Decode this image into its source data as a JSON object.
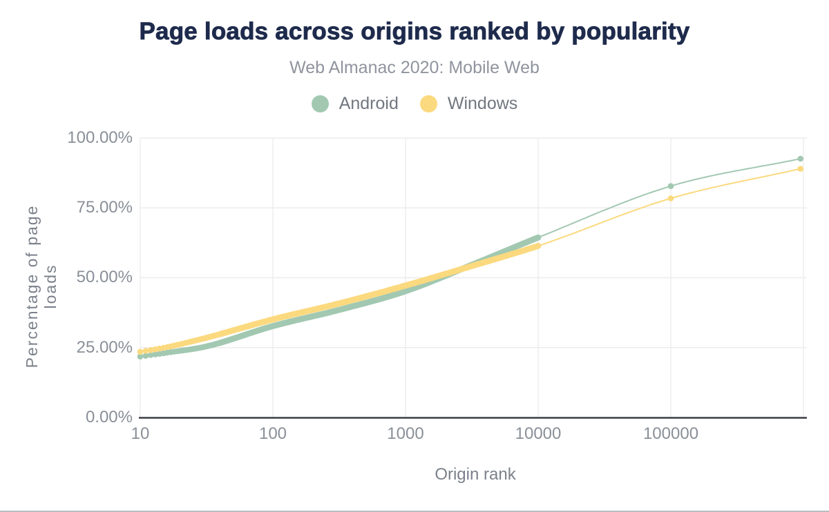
{
  "title": "Page loads across origins ranked by popularity",
  "subtitle": "Web Almanac 2020: Mobile Web",
  "legend": [
    {
      "label": "Android",
      "color": "#a2c8b1"
    },
    {
      "label": "Windows",
      "color": "#fbd97e"
    }
  ],
  "colors": {
    "title": "#1e2b4c",
    "subtitle": "#8f949e",
    "android": "#a2c8b1",
    "windows": "#fbd97e",
    "gridline": "#ececec",
    "axis_line": "#3a3d44",
    "tick_label": "#898f98",
    "axis_title": "#7b818b"
  },
  "y_axis": {
    "title": "Percentage of page loads",
    "ticks": [
      "100.00%",
      "75.00%",
      "50.00%",
      "25.00%",
      "0.00%"
    ]
  },
  "x_axis": {
    "title": "Origin rank",
    "ticks": [
      "10",
      "100",
      "1000",
      "10000",
      "100000"
    ]
  },
  "chart_data": {
    "type": "line",
    "x_scale": "log",
    "title": "Page loads across origins ranked by popularity",
    "subtitle": "Web Almanac 2020: Mobile Web",
    "xlabel": "Origin rank",
    "ylabel": "Percentage of page loads",
    "x_range": [
      10,
      1000000
    ],
    "ylim": [
      0,
      100
    ],
    "grid": true,
    "legend_position": "top",
    "note": "values are percentages; dense point band from rank 10 to 10000, sparse markers after",
    "series": [
      {
        "name": "Android",
        "color": "#a2c8b1",
        "dense_until": 10000,
        "points": [
          [
            10,
            21.8
          ],
          [
            16,
            23.2
          ],
          [
            32,
            25.5
          ],
          [
            100,
            32.7
          ],
          [
            316,
            38.5
          ],
          [
            1000,
            45.2
          ],
          [
            3162,
            54.6
          ],
          [
            10000,
            64.4
          ],
          [
            100000,
            82.8
          ],
          [
            950000,
            92.6
          ]
        ]
      },
      {
        "name": "Windows",
        "color": "#fbd97e",
        "dense_until": 10000,
        "points": [
          [
            10,
            23.5
          ],
          [
            16,
            25.2
          ],
          [
            32,
            28.6
          ],
          [
            100,
            35.1
          ],
          [
            316,
            40.8
          ],
          [
            1000,
            47.2
          ],
          [
            3162,
            54.2
          ],
          [
            10000,
            61.4
          ],
          [
            100000,
            78.4
          ],
          [
            950000,
            89.0
          ]
        ]
      }
    ]
  }
}
